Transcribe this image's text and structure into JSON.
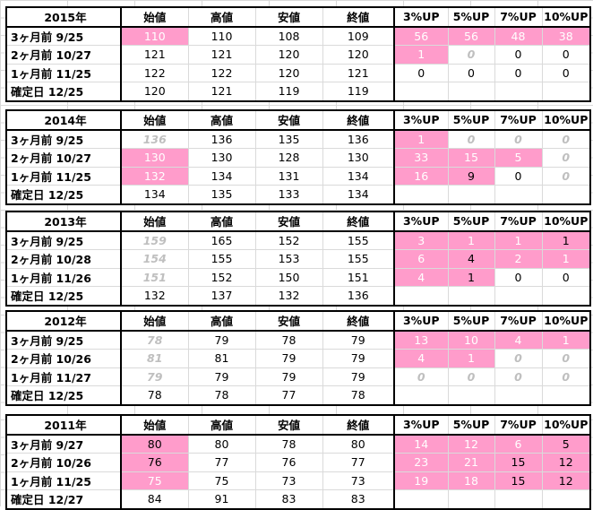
{
  "headers": [
    "始値",
    "高値",
    "安値",
    "終値",
    "3%UP",
    "5%UP",
    "7%UP",
    "10%UP"
  ],
  "blocks": [
    {
      "year": "2015年",
      "rows": [
        {
          "label": "3ヶ月前  9/25",
          "cells": [
            {
              "v": "110",
              "s": "pink"
            },
            {
              "v": "110"
            },
            {
              "v": "108"
            },
            {
              "v": "109"
            },
            {
              "v": "56",
              "s": "pink"
            },
            {
              "v": "56",
              "s": "pink"
            },
            {
              "v": "48",
              "s": "pink"
            },
            {
              "v": "38",
              "s": "pink"
            }
          ]
        },
        {
          "label": "2ヶ月前  10/27",
          "cells": [
            {
              "v": "121"
            },
            {
              "v": "121"
            },
            {
              "v": "120"
            },
            {
              "v": "120"
            },
            {
              "v": "1",
              "s": "pink"
            },
            {
              "v": "0",
              "s": "gray"
            },
            {
              "v": "0"
            },
            {
              "v": "0"
            }
          ]
        },
        {
          "label": "1ヶ月前  11/25",
          "cells": [
            {
              "v": "122"
            },
            {
              "v": "122"
            },
            {
              "v": "120"
            },
            {
              "v": "121"
            },
            {
              "v": "0"
            },
            {
              "v": "0"
            },
            {
              "v": "0"
            },
            {
              "v": "0"
            }
          ]
        },
        {
          "label": "確定日  12/25",
          "cells": [
            {
              "v": "120"
            },
            {
              "v": "121"
            },
            {
              "v": "119"
            },
            {
              "v": "119"
            },
            {
              "v": ""
            },
            {
              "v": ""
            },
            {
              "v": ""
            },
            {
              "v": ""
            }
          ]
        }
      ]
    },
    {
      "year": "2014年",
      "rows": [
        {
          "label": "3ヶ月前  9/25",
          "cells": [
            {
              "v": "136",
              "s": "gray"
            },
            {
              "v": "136"
            },
            {
              "v": "135"
            },
            {
              "v": "136"
            },
            {
              "v": "1",
              "s": "pink"
            },
            {
              "v": "0",
              "s": "gray"
            },
            {
              "v": "0",
              "s": "gray"
            },
            {
              "v": "0",
              "s": "gray"
            }
          ]
        },
        {
          "label": "2ヶ月前  10/27",
          "cells": [
            {
              "v": "130",
              "s": "pink"
            },
            {
              "v": "130"
            },
            {
              "v": "128"
            },
            {
              "v": "130"
            },
            {
              "v": "33",
              "s": "pink"
            },
            {
              "v": "15",
              "s": "pink"
            },
            {
              "v": "5",
              "s": "pink"
            },
            {
              "v": "0",
              "s": "gray"
            }
          ]
        },
        {
          "label": "1ヶ月前  11/25",
          "cells": [
            {
              "v": "132",
              "s": "pink"
            },
            {
              "v": "134"
            },
            {
              "v": "131"
            },
            {
              "v": "134"
            },
            {
              "v": "16",
              "s": "pink"
            },
            {
              "v": "9",
              "s": "pinkbk"
            },
            {
              "v": "0"
            },
            {
              "v": "0",
              "s": "gray"
            }
          ]
        },
        {
          "label": "確定日  12/25",
          "cells": [
            {
              "v": "134"
            },
            {
              "v": "135"
            },
            {
              "v": "133"
            },
            {
              "v": "134"
            },
            {
              "v": ""
            },
            {
              "v": ""
            },
            {
              "v": ""
            },
            {
              "v": ""
            }
          ]
        }
      ]
    },
    {
      "year": "2013年",
      "rows": [
        {
          "label": "3ヶ月前  9/25",
          "cells": [
            {
              "v": "159",
              "s": "gray"
            },
            {
              "v": "165"
            },
            {
              "v": "152"
            },
            {
              "v": "155"
            },
            {
              "v": "3",
              "s": "pink"
            },
            {
              "v": "1",
              "s": "pink"
            },
            {
              "v": "1",
              "s": "pink"
            },
            {
              "v": "1",
              "s": "pinkbk"
            }
          ]
        },
        {
          "label": "2ヶ月前  10/28",
          "cells": [
            {
              "v": "154",
              "s": "gray"
            },
            {
              "v": "155"
            },
            {
              "v": "153"
            },
            {
              "v": "155"
            },
            {
              "v": "6",
              "s": "pink"
            },
            {
              "v": "4",
              "s": "pinkbk"
            },
            {
              "v": "2",
              "s": "pink"
            },
            {
              "v": "1",
              "s": "pink"
            }
          ]
        },
        {
          "label": "1ヶ月前  11/26",
          "cells": [
            {
              "v": "151",
              "s": "gray"
            },
            {
              "v": "152"
            },
            {
              "v": "150"
            },
            {
              "v": "151"
            },
            {
              "v": "4",
              "s": "pink"
            },
            {
              "v": "1",
              "s": "pinkbk"
            },
            {
              "v": "0"
            },
            {
              "v": "0"
            }
          ]
        },
        {
          "label": "確定日  12/25",
          "cells": [
            {
              "v": "132"
            },
            {
              "v": "137"
            },
            {
              "v": "132"
            },
            {
              "v": "136"
            },
            {
              "v": ""
            },
            {
              "v": ""
            },
            {
              "v": ""
            },
            {
              "v": ""
            }
          ]
        }
      ]
    },
    {
      "year": "2012年",
      "rows": [
        {
          "label": "3ヶ月前  9/25",
          "cells": [
            {
              "v": "78",
              "s": "gray"
            },
            {
              "v": "79"
            },
            {
              "v": "78"
            },
            {
              "v": "79"
            },
            {
              "v": "13",
              "s": "pink"
            },
            {
              "v": "10",
              "s": "pink"
            },
            {
              "v": "4",
              "s": "pink"
            },
            {
              "v": "1",
              "s": "pink"
            }
          ]
        },
        {
          "label": "2ヶ月前  10/26",
          "cells": [
            {
              "v": "81",
              "s": "gray"
            },
            {
              "v": "81"
            },
            {
              "v": "79"
            },
            {
              "v": "79"
            },
            {
              "v": "4",
              "s": "pink"
            },
            {
              "v": "1",
              "s": "pink"
            },
            {
              "v": "0",
              "s": "gray"
            },
            {
              "v": "0",
              "s": "gray"
            }
          ]
        },
        {
          "label": "1ヶ月前  11/27",
          "cells": [
            {
              "v": "79",
              "s": "gray"
            },
            {
              "v": "79"
            },
            {
              "v": "79"
            },
            {
              "v": "79"
            },
            {
              "v": "0",
              "s": "gray"
            },
            {
              "v": "0",
              "s": "gray"
            },
            {
              "v": "0",
              "s": "gray"
            },
            {
              "v": "0",
              "s": "gray"
            }
          ]
        },
        {
          "label": "確定日  12/25",
          "cells": [
            {
              "v": "78"
            },
            {
              "v": "78"
            },
            {
              "v": "77"
            },
            {
              "v": "78"
            },
            {
              "v": ""
            },
            {
              "v": ""
            },
            {
              "v": ""
            },
            {
              "v": ""
            }
          ]
        }
      ]
    },
    {
      "year": "2011年",
      "rows": [
        {
          "label": "3ヶ月前  9/27",
          "cells": [
            {
              "v": "80",
              "s": "pinkbk"
            },
            {
              "v": "80"
            },
            {
              "v": "78"
            },
            {
              "v": "80"
            },
            {
              "v": "14",
              "s": "pink"
            },
            {
              "v": "12",
              "s": "pink"
            },
            {
              "v": "6",
              "s": "pink"
            },
            {
              "v": "5",
              "s": "pinkbk"
            }
          ]
        },
        {
          "label": "2ヶ月前  10/26",
          "cells": [
            {
              "v": "76",
              "s": "pinkbk"
            },
            {
              "v": "77"
            },
            {
              "v": "76"
            },
            {
              "v": "77"
            },
            {
              "v": "23",
              "s": "pink"
            },
            {
              "v": "21",
              "s": "pink"
            },
            {
              "v": "15",
              "s": "pinkbk"
            },
            {
              "v": "12",
              "s": "pinkbk"
            }
          ]
        },
        {
          "label": "1ヶ月前  11/25",
          "cells": [
            {
              "v": "75",
              "s": "pink"
            },
            {
              "v": "75"
            },
            {
              "v": "73"
            },
            {
              "v": "73"
            },
            {
              "v": "19",
              "s": "pink"
            },
            {
              "v": "18",
              "s": "pink"
            },
            {
              "v": "15",
              "s": "pinkbk"
            },
            {
              "v": "12",
              "s": "pinkbk"
            }
          ]
        },
        {
          "label": "確定日  12/27",
          "cells": [
            {
              "v": "84"
            },
            {
              "v": "91"
            },
            {
              "v": "83"
            },
            {
              "v": "83"
            },
            {
              "v": ""
            },
            {
              "v": ""
            },
            {
              "v": ""
            },
            {
              "v": ""
            }
          ]
        }
      ]
    }
  ]
}
